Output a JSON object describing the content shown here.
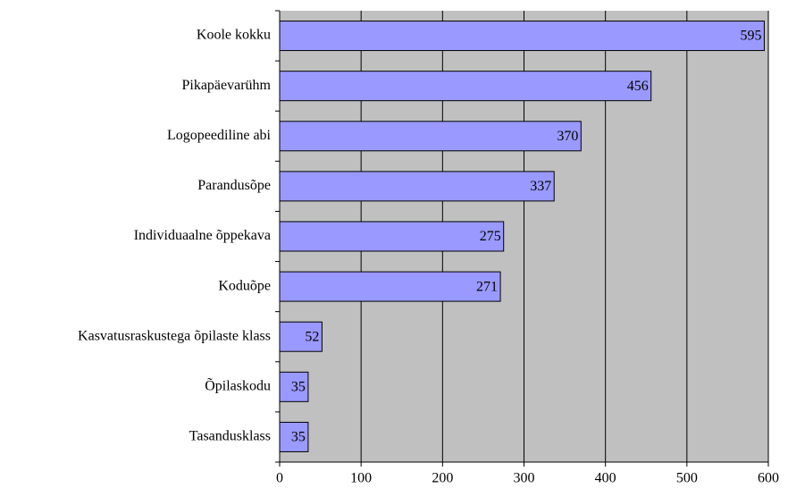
{
  "chart_data": {
    "type": "bar",
    "orientation": "horizontal",
    "categories": [
      "Koole kokku",
      "Pikapäevarühm",
      "Logopeediline abi",
      "Parandusõpe",
      "Individuaalne õppekava",
      "Koduõpe",
      "Kasvatusraskustega õpilaste klass",
      "Õpilaskodu",
      "Tasandusklass"
    ],
    "values": [
      595,
      456,
      370,
      337,
      275,
      271,
      52,
      35,
      35
    ],
    "color": "#9999ff",
    "plot_background": "#c0c0c0",
    "xlim": [
      0,
      600
    ],
    "xticks": [
      0,
      100,
      200,
      300,
      400,
      500,
      600
    ],
    "grid": true
  }
}
